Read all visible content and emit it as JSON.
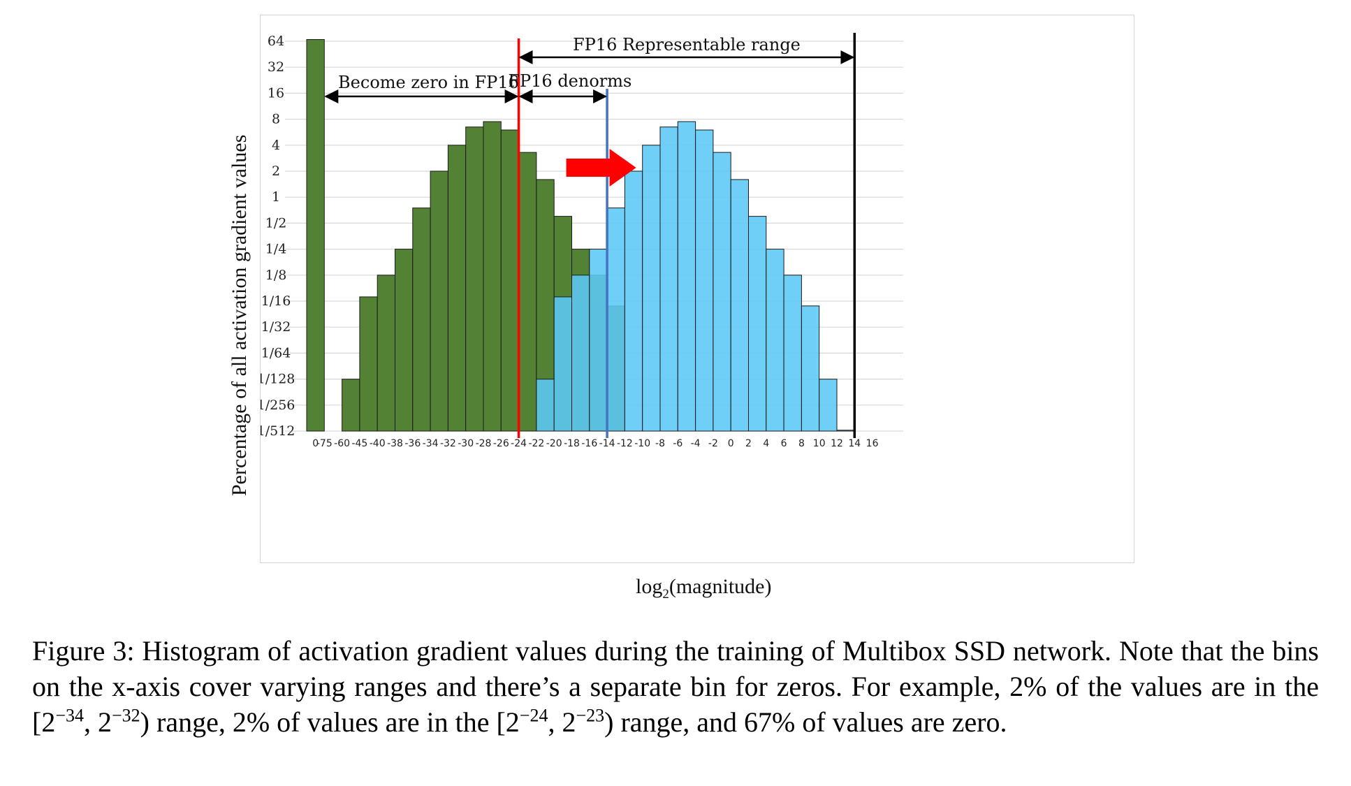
{
  "chart_data": {
    "type": "bar",
    "ylabel": "Percentage of all activation gradient values",
    "xlabel_main": "log",
    "xlabel_sub": "2",
    "xlabel_tail": "(magnitude)",
    "y_scale": "log2",
    "y_ticks": [
      "64",
      "32",
      "16",
      "8",
      "4",
      "2",
      "1",
      "1/2",
      "1/4",
      "1/8",
      "1/16",
      "1/32",
      "1/64",
      "1/128",
      "1/256",
      "1/512"
    ],
    "x_tick_labels": [
      "0",
      "-75",
      "-60",
      "-45",
      "-40",
      "-38",
      "-36",
      "-34",
      "-32",
      "-30",
      "-28",
      "-26",
      "-24",
      "-22",
      "-20",
      "-18",
      "-16",
      "-14",
      "-12",
      "-10",
      "-8",
      "-6",
      "-4",
      "-2",
      "0",
      "2",
      "4",
      "6",
      "8",
      "10",
      "12",
      "14",
      "16"
    ],
    "grid": true,
    "series": [
      {
        "color": "#548235",
        "bins": [
          "0",
          "-60",
          "-45",
          "-40",
          "-38",
          "-36",
          "-34",
          "-32",
          "-30",
          "-28",
          "-26",
          "-24",
          "-22",
          "-20",
          "-18",
          "-16",
          "-14"
        ],
        "values": [
          67,
          0.0078,
          0.07,
          0.125,
          0.25,
          0.75,
          2,
          4,
          6.5,
          7.5,
          6,
          3.3,
          1.6,
          0.6,
          0.25,
          0.125,
          0.055
        ]
      },
      {
        "color": "#5bc8f5",
        "bins": [
          "-22",
          "-20",
          "-18",
          "-16",
          "-14",
          "-12",
          "-10",
          "-8",
          "-6",
          "-4",
          "-2",
          "0",
          "2",
          "4",
          "6",
          "8",
          "10",
          "12"
        ],
        "values": [
          0.0078,
          0.07,
          0.125,
          0.25,
          0.75,
          2,
          4,
          6.5,
          7.5,
          6,
          3.3,
          1.6,
          0.6,
          0.25,
          0.125,
          0.055,
          0.0078,
          0.002
        ]
      }
    ],
    "markers": [
      {
        "x": -24,
        "color": "#ff0000"
      },
      {
        "x": -14,
        "color": "#4472c4"
      },
      {
        "x": 14,
        "color": "#000000"
      }
    ],
    "annotations": {
      "zero_label": "Become zero in FP16",
      "denorm_label": "FP16 denorms",
      "range_label": "FP16 Representable range"
    },
    "shift_arrow_color": "#ff0000"
  },
  "caption": {
    "part1": "Figure 3: Histogram of activation gradient values during the training of Multibox SSD network. Note that the bins on the x-axis cover varying ranges and there’s a separate bin for zeros. For example, 2% of the values are in the [2",
    "sup1": "−34",
    "mid1": ", 2",
    "sup2": "−32",
    "part2": ") range, 2% of values are in the [2",
    "sup3": "−24",
    "mid2": ", 2",
    "sup4": "−23",
    "part3": ") range, and 67% of values are zero."
  }
}
